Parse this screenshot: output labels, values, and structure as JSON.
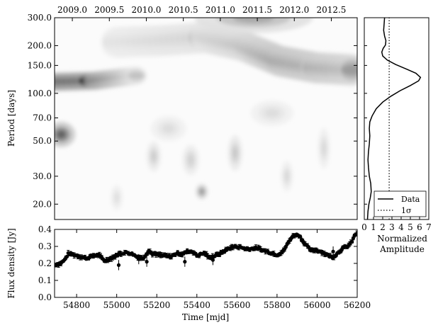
{
  "chart_data": [
    {
      "id": "wavelet",
      "type": "heatmap",
      "title": "",
      "ylabel": "Period [days]",
      "y_scale": "log",
      "ylim": [
        16,
        300
      ],
      "yticks": [
        20,
        30,
        50,
        70,
        100,
        150,
        200,
        300
      ],
      "yticklabels": [
        "20.0",
        "30.0",
        "50.0",
        "70.0",
        "100.0",
        "150.0",
        "200.0",
        "300.0"
      ],
      "top_xlim": [
        2008.76,
        2012.85
      ],
      "top_xticks": [
        2009.0,
        2009.5,
        2010.0,
        2010.5,
        2011.0,
        2011.5,
        2012.0,
        2012.5
      ],
      "top_xticklabels": [
        "2009.0",
        "2009.5",
        "2010.0",
        "2010.5",
        "2011.0",
        "2011.5",
        "2012.0",
        "2012.5"
      ],
      "colormap": "greys",
      "features": [
        {
          "kind": "band",
          "x": [
            2008.76,
            2009.3,
            2009.6,
            2009.9
          ],
          "y": [
            118,
            120,
            125,
            130
          ],
          "strength": [
            1.0,
            0.95,
            0.6,
            0.2
          ],
          "width_dex": 0.04
        },
        {
          "kind": "band",
          "x": [
            2009.6,
            2010.2,
            2010.8,
            2011.3,
            2011.8,
            2012.3,
            2012.85
          ],
          "y": [
            210,
            215,
            225,
            200,
            160,
            145,
            140
          ],
          "strength": [
            0.15,
            0.2,
            0.25,
            0.35,
            0.55,
            0.5,
            0.4
          ],
          "width_dex": 0.07
        },
        {
          "kind": "blob",
          "x": 2008.85,
          "y": 55,
          "strength": 0.65,
          "rx": 0.12,
          "ry_dex": 0.05
        },
        {
          "kind": "blob",
          "x": 2011.45,
          "y": 300,
          "strength": 0.35,
          "rx": 0.5,
          "ry_dex": 0.06
        },
        {
          "kind": "blob",
          "x": 2010.75,
          "y": 24,
          "strength": 0.45,
          "rx": 0.05,
          "ry_dex": 0.03
        },
        {
          "kind": "blob",
          "x": 2010.1,
          "y": 40,
          "strength": 0.2,
          "rx": 0.06,
          "ry_dex": 0.06
        },
        {
          "kind": "blob",
          "x": 2010.6,
          "y": 38,
          "strength": 0.18,
          "rx": 0.07,
          "ry_dex": 0.06
        },
        {
          "kind": "blob",
          "x": 2011.2,
          "y": 42,
          "strength": 0.22,
          "rx": 0.06,
          "ry_dex": 0.07
        },
        {
          "kind": "blob",
          "x": 2011.9,
          "y": 30,
          "strength": 0.15,
          "rx": 0.05,
          "ry_dex": 0.06
        },
        {
          "kind": "blob",
          "x": 2009.6,
          "y": 22,
          "strength": 0.12,
          "rx": 0.05,
          "ry_dex": 0.05
        },
        {
          "kind": "blob",
          "x": 2012.4,
          "y": 45,
          "strength": 0.15,
          "rx": 0.05,
          "ry_dex": 0.08
        },
        {
          "kind": "blob",
          "x": 2010.3,
          "y": 60,
          "strength": 0.12,
          "rx": 0.15,
          "ry_dex": 0.05
        },
        {
          "kind": "blob",
          "x": 2011.7,
          "y": 75,
          "strength": 0.12,
          "rx": 0.18,
          "ry_dex": 0.05
        }
      ]
    },
    {
      "id": "global_power",
      "type": "line",
      "xlabel": "Normalized\nAmplitude",
      "xlim": [
        0,
        7
      ],
      "xticks": [
        0,
        1,
        2,
        3,
        4,
        5,
        6,
        7
      ],
      "xticklabels": [
        "0",
        "1",
        "2",
        "3",
        "4",
        "5",
        "6",
        "7"
      ],
      "y_scale": "log",
      "ylim": [
        16,
        300
      ],
      "legend_position": "bottom-right",
      "series": [
        {
          "name": "Data",
          "style": "solid",
          "points": [
            [
              0.35,
              16
            ],
            [
              0.4,
              18
            ],
            [
              0.5,
              20
            ],
            [
              0.65,
              22
            ],
            [
              0.75,
              24
            ],
            [
              0.7,
              27
            ],
            [
              0.55,
              30
            ],
            [
              0.45,
              34
            ],
            [
              0.4,
              38
            ],
            [
              0.45,
              43
            ],
            [
              0.55,
              48
            ],
            [
              0.6,
              54
            ],
            [
              0.55,
              60
            ],
            [
              0.6,
              66
            ],
            [
              0.85,
              72
            ],
            [
              1.3,
              80
            ],
            [
              2.0,
              88
            ],
            [
              2.9,
              96
            ],
            [
              3.9,
              104
            ],
            [
              5.0,
              112
            ],
            [
              5.9,
              120
            ],
            [
              6.1,
              126
            ],
            [
              5.6,
              134
            ],
            [
              4.6,
              142
            ],
            [
              3.4,
              152
            ],
            [
              2.5,
              162
            ],
            [
              2.0,
              172
            ],
            [
              1.9,
              182
            ],
            [
              2.05,
              192
            ],
            [
              2.3,
              202
            ],
            [
              2.35,
              215
            ],
            [
              2.2,
              230
            ],
            [
              2.1,
              250
            ],
            [
              2.15,
              275
            ],
            [
              2.2,
              300
            ]
          ]
        },
        {
          "name": "1σ",
          "style": "dotted",
          "points": [
            [
              2.7,
              16
            ],
            [
              2.7,
              300
            ]
          ]
        }
      ]
    },
    {
      "id": "lightcurve",
      "type": "scatter",
      "xlabel": "Time [mjd]",
      "ylabel": "Flux density [Jy]",
      "xlim": [
        54690,
        56200
      ],
      "ylim": [
        0.0,
        0.4
      ],
      "xticks": [
        54800,
        55000,
        55200,
        55400,
        55600,
        55800,
        56000,
        56200
      ],
      "xticklabels": [
        "54800",
        "55000",
        "55200",
        "55400",
        "55600",
        "55800",
        "56000",
        "56200"
      ],
      "yticks": [
        0.0,
        0.1,
        0.2,
        0.3,
        0.4
      ],
      "yticklabels": [
        "0.0",
        "0.1",
        "0.2",
        "0.3",
        "0.4"
      ],
      "error_bars": true,
      "profile": {
        "x": [
          54690,
          54720,
          54740,
          54760,
          54790,
          54820,
          54850,
          54880,
          54910,
          54940,
          54980,
          55010,
          55050,
          55080,
          55100,
          55130,
          55150,
          55160,
          55180,
          55210,
          55240,
          55270,
          55300,
          55330,
          55350,
          55380,
          55400,
          55420,
          55440,
          55460,
          55490,
          55520,
          55560,
          55600,
          55650,
          55700,
          55750,
          55800,
          55830,
          55850,
          55870,
          55890,
          55910,
          55930,
          55950,
          55970,
          55990,
          56020,
          56050,
          56080,
          56110,
          56130,
          56150,
          56170,
          56190,
          56200
        ],
        "y": [
          0.19,
          0.2,
          0.22,
          0.26,
          0.25,
          0.24,
          0.23,
          0.245,
          0.25,
          0.215,
          0.235,
          0.255,
          0.265,
          0.255,
          0.24,
          0.23,
          0.26,
          0.275,
          0.255,
          0.25,
          0.245,
          0.24,
          0.26,
          0.255,
          0.27,
          0.27,
          0.245,
          0.255,
          0.26,
          0.235,
          0.245,
          0.26,
          0.29,
          0.3,
          0.285,
          0.29,
          0.27,
          0.25,
          0.27,
          0.31,
          0.35,
          0.37,
          0.365,
          0.33,
          0.3,
          0.275,
          0.28,
          0.27,
          0.25,
          0.235,
          0.27,
          0.29,
          0.3,
          0.32,
          0.37,
          0.38
        ]
      },
      "outliers": [
        [
          55150,
          0.21
        ],
        [
          55110,
          0.225
        ],
        [
          55010,
          0.19
        ],
        [
          55340,
          0.21
        ],
        [
          55480,
          0.22
        ],
        [
          56080,
          0.27
        ]
      ],
      "sample_interval_days": 6
    }
  ]
}
